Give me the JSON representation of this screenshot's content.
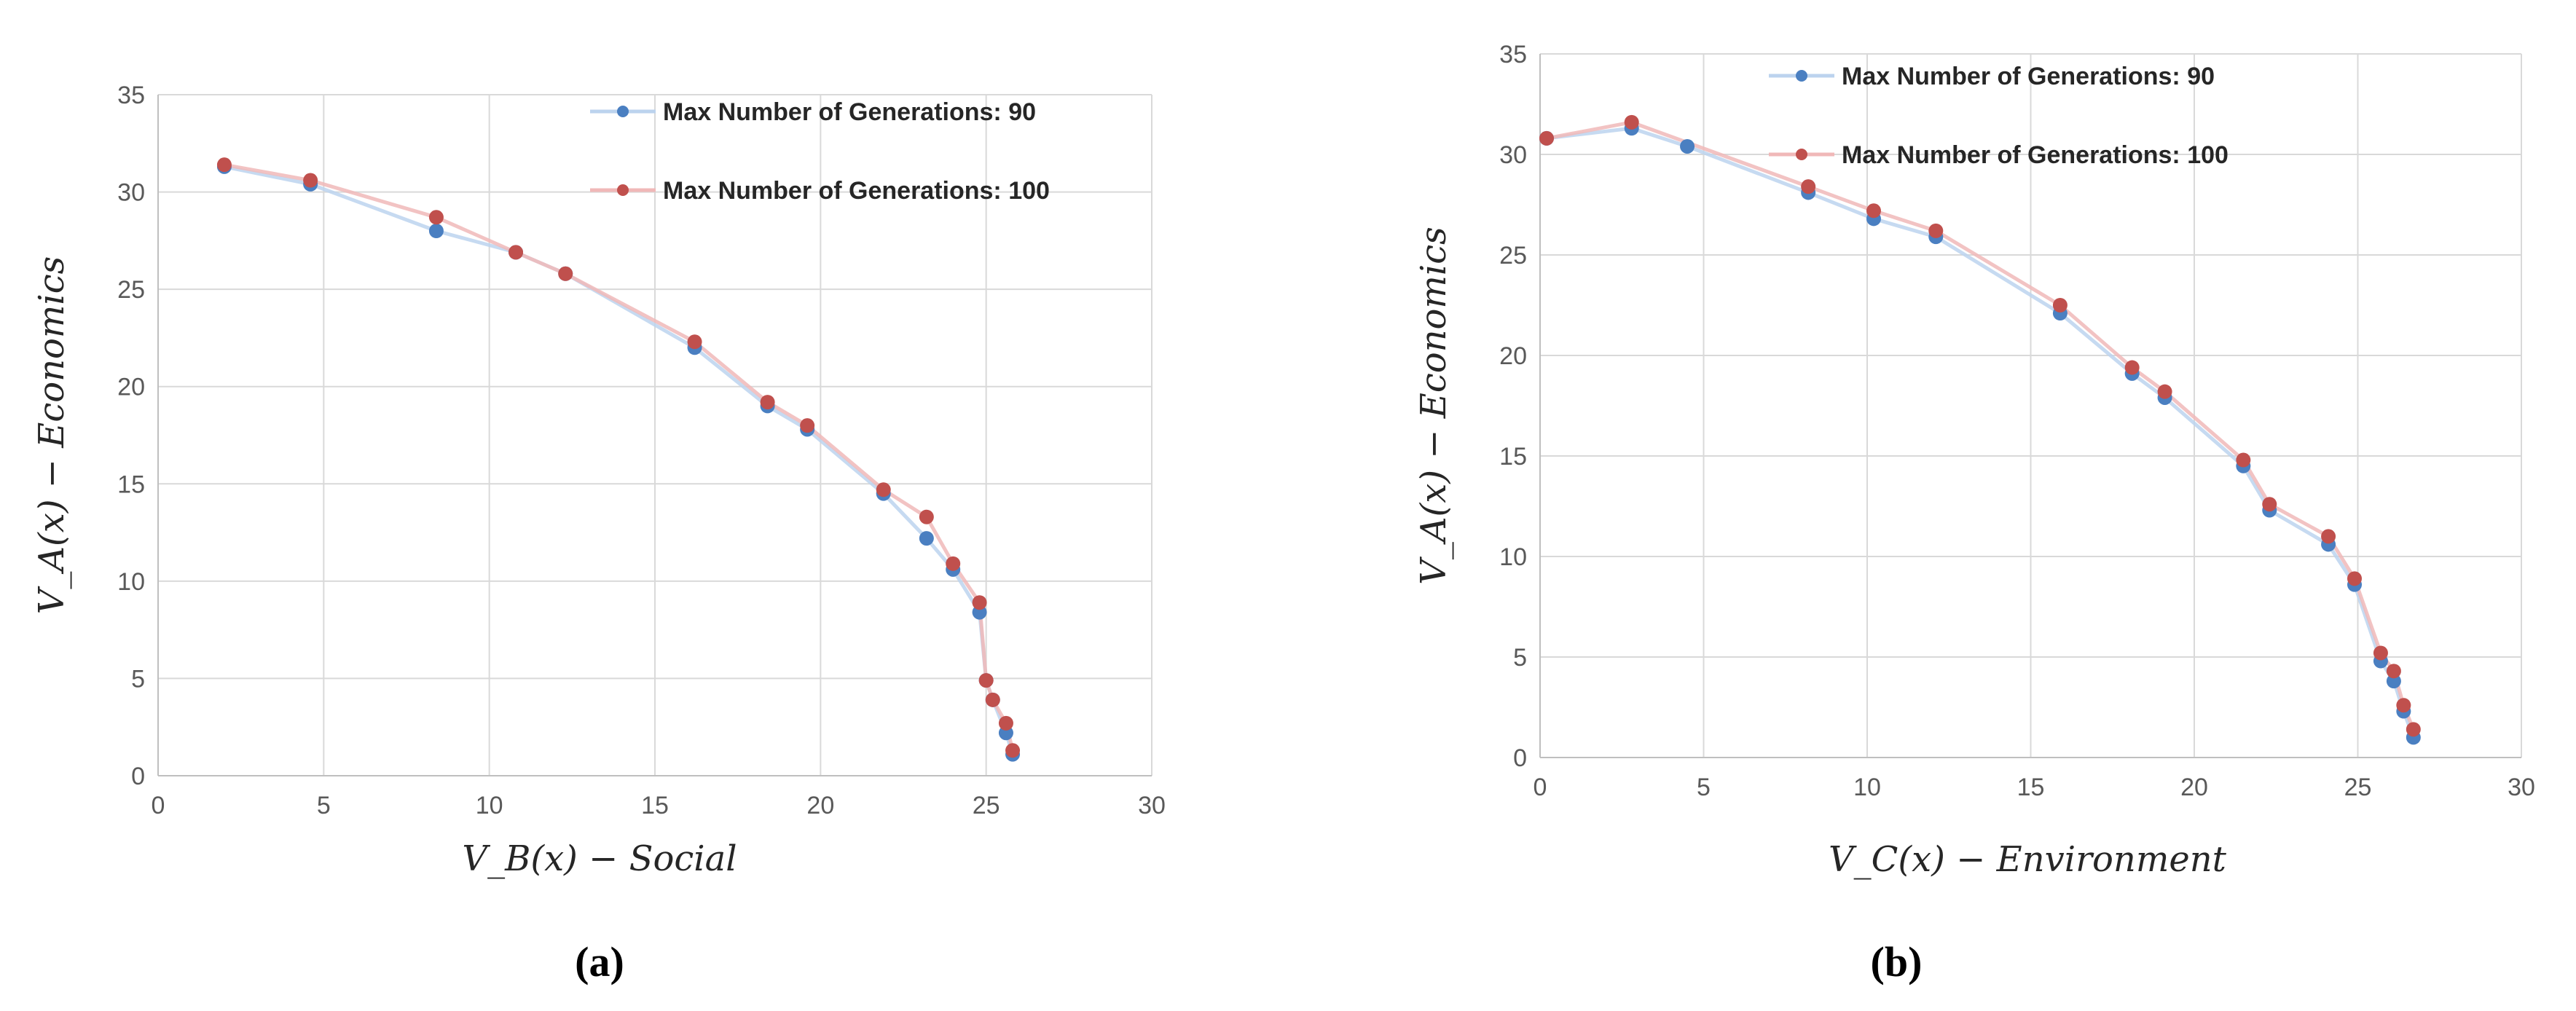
{
  "chart_data": [
    {
      "type": "scatter",
      "panel_label": "(a)",
      "xlabel": "V_B(x) − Social",
      "ylabel": "V_A(x) − Economics",
      "xlim": [
        0,
        30
      ],
      "ylim": [
        0,
        35
      ],
      "xticks": [
        0,
        5,
        10,
        15,
        20,
        25,
        30
      ],
      "yticks": [
        0,
        5,
        10,
        15,
        20,
        25,
        30,
        35
      ],
      "grid": true,
      "legend_position": "top-right",
      "series": [
        {
          "name": "Max Number of Generations: 90",
          "color": "#4a7fc1",
          "line_color": "#bcd3ee",
          "x": [
            2,
            4.6,
            8.4,
            10.8,
            12.3,
            16.2,
            18.4,
            19.6,
            21.9,
            23.2,
            24.0,
            24.8,
            25.0,
            25.2,
            25.6,
            25.8
          ],
          "y": [
            31.3,
            30.4,
            28.0,
            26.9,
            25.8,
            22.0,
            19.0,
            17.8,
            14.5,
            12.2,
            10.6,
            8.4,
            4.9,
            3.9,
            2.2,
            1.1
          ]
        },
        {
          "name": "Max Number of Generations: 100",
          "color": "#c0504d",
          "line_color": "#f0b8b8",
          "x": [
            2,
            4.6,
            8.4,
            10.8,
            12.3,
            16.2,
            18.4,
            19.6,
            21.9,
            23.2,
            24.0,
            24.8,
            25.0,
            25.2,
            25.6,
            25.8
          ],
          "y": [
            31.4,
            30.6,
            28.7,
            26.9,
            25.8,
            22.3,
            19.2,
            18.0,
            14.7,
            13.3,
            10.9,
            8.9,
            4.9,
            3.9,
            2.7,
            1.3
          ]
        }
      ]
    },
    {
      "type": "scatter",
      "panel_label": "(b)",
      "xlabel": "V_C(x) − Environment",
      "ylabel": "V_A(x) − Economics",
      "xlim": [
        0,
        30
      ],
      "ylim": [
        0,
        35
      ],
      "xticks": [
        0,
        5,
        10,
        15,
        20,
        25,
        30
      ],
      "yticks": [
        0,
        5,
        10,
        15,
        20,
        25,
        30,
        35
      ],
      "grid": true,
      "legend_position": "top-right",
      "series": [
        {
          "name": "Max Number of Generations: 90",
          "color": "#4a7fc1",
          "line_color": "#bcd3ee",
          "x": [
            0.2,
            2.8,
            4.5,
            8.2,
            10.2,
            12.1,
            15.9,
            18.1,
            19.1,
            21.5,
            22.3,
            24.1,
            24.9,
            25.7,
            26.1,
            26.4,
            26.7
          ],
          "y": [
            30.8,
            31.3,
            30.4,
            28.1,
            26.8,
            25.9,
            22.1,
            19.1,
            17.9,
            14.5,
            12.3,
            10.6,
            8.6,
            4.8,
            3.8,
            2.3,
            1.0
          ]
        },
        {
          "name": "Max Number of Generations: 100",
          "color": "#c0504d",
          "line_color": "#f0b8b8",
          "x": [
            0.2,
            2.8,
            8.2,
            10.2,
            12.1,
            15.9,
            18.1,
            19.1,
            21.5,
            22.3,
            24.1,
            24.9,
            25.7,
            26.1,
            26.4,
            26.7
          ],
          "y": [
            30.8,
            31.6,
            28.4,
            27.2,
            26.2,
            22.5,
            19.4,
            18.2,
            14.8,
            12.6,
            11.0,
            8.9,
            5.2,
            4.3,
            2.6,
            1.4
          ]
        }
      ]
    }
  ]
}
